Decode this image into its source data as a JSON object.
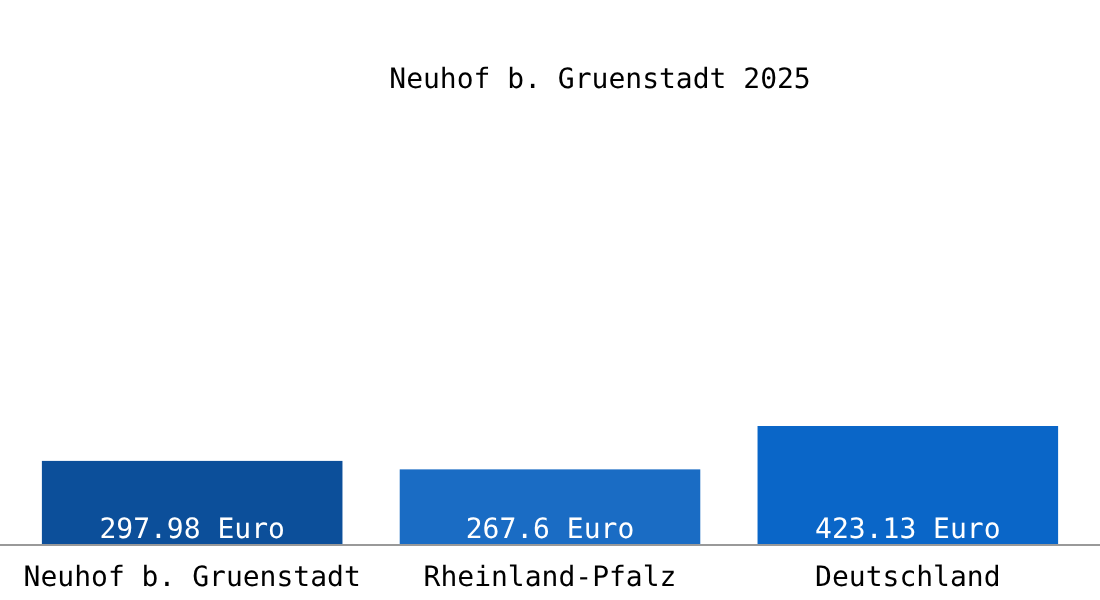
{
  "chart_data": {
    "type": "bar",
    "title": "Neuhof b. Gruenstadt 2025",
    "categories": [
      "Neuhof b. Gruenstadt",
      "Rheinland-Pfalz",
      "Deutschland"
    ],
    "values": [
      297.98,
      267.6,
      423.13
    ],
    "colors": [
      "#0c4f9a",
      "#1a6cc4",
      "#0a66c8"
    ],
    "value_labels": [
      "297.98 Euro",
      "267.6 Euro",
      "423.13 Euro"
    ]
  }
}
